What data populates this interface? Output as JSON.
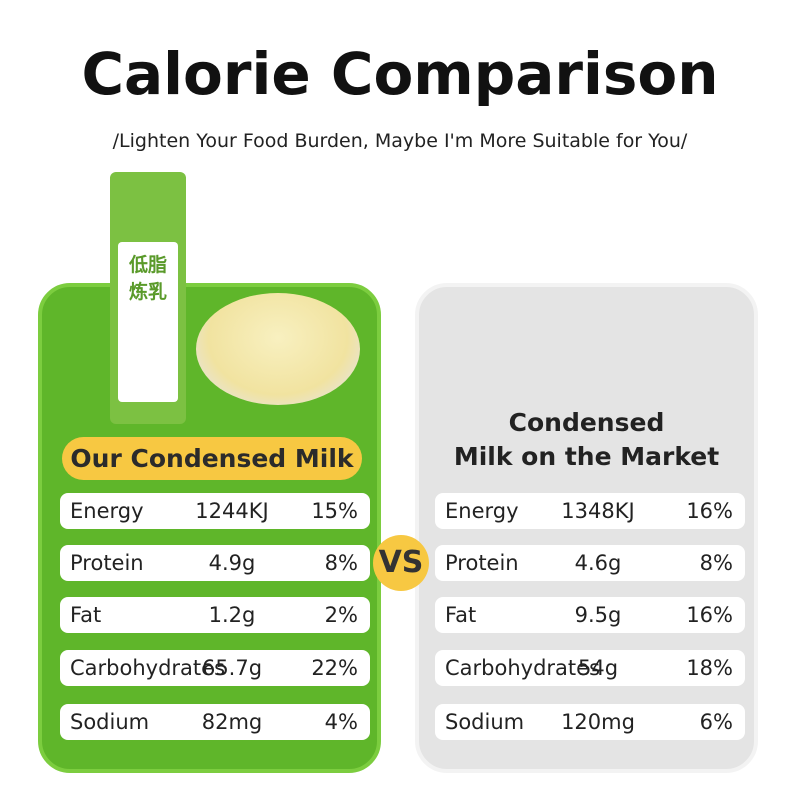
{
  "header": {
    "title": "Calorie Comparison",
    "subtitle": "/Lighten Your Food Burden, Maybe I'm More Suitable for You/"
  },
  "package": {
    "lines": [
      "低脂",
      "炼乳"
    ]
  },
  "vs": "VS",
  "panels": [
    {
      "heading": [
        "Our Condensed Milk"
      ],
      "rows": [
        [
          "Energy",
          "1244KJ",
          "15%"
        ],
        [
          "Protein",
          "4.9g",
          "8%"
        ],
        [
          "Fat",
          "1.2g",
          "2%"
        ],
        [
          "Carbohydrates",
          "65.7g",
          "22%"
        ],
        [
          "Sodium",
          "82mg",
          "4%"
        ]
      ]
    },
    {
      "heading": [
        "Condensed",
        "Milk on the Market"
      ],
      "rows": [
        [
          "Energy",
          "1348KJ",
          "16%"
        ],
        [
          "Protein",
          "4.6g",
          "8%"
        ],
        [
          "Fat",
          "9.5g",
          "16%"
        ],
        [
          "Carbohydrates",
          "54g",
          "18%"
        ],
        [
          "Sodium",
          "120mg",
          "6%"
        ]
      ]
    }
  ]
}
